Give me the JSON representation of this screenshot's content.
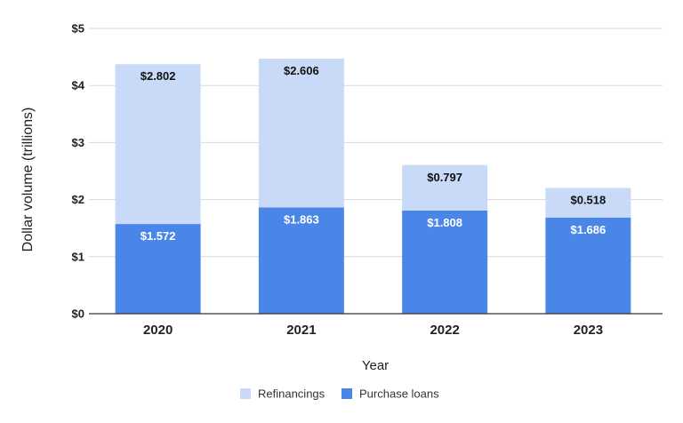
{
  "chart_data": {
    "type": "bar",
    "stacked": true,
    "categories": [
      "2020",
      "2021",
      "2022",
      "2023"
    ],
    "series": [
      {
        "name": "Purchase loans",
        "values": [
          1.572,
          1.863,
          1.808,
          1.686
        ],
        "labels": [
          "$1.572",
          "$1.863",
          "$1.808",
          "$1.686"
        ],
        "color": "#4a86e8",
        "label_color": "#ffffff"
      },
      {
        "name": "Refinancings",
        "values": [
          2.802,
          2.606,
          0.797,
          0.518
        ],
        "labels": [
          "$2.802",
          "$2.606",
          "$0.797",
          "$0.518"
        ],
        "color": "#c9daf8",
        "label_color": "#111111"
      }
    ],
    "title": "",
    "xlabel": "Year",
    "ylabel": "Dollar volume (trillions)",
    "ylim": [
      0,
      5
    ],
    "yticks": [
      0,
      1,
      2,
      3,
      4,
      5
    ],
    "ytick_labels": [
      "$0",
      "$1",
      "$2",
      "$3",
      "$4",
      "$5"
    ],
    "grid": true,
    "legend_position": "bottom",
    "legend_order": [
      "Refinancings",
      "Purchase loans"
    ]
  }
}
